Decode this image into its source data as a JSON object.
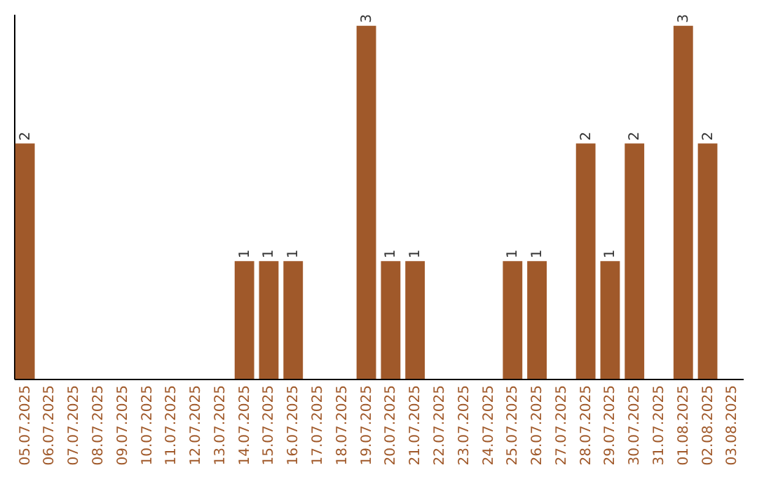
{
  "chart_data": {
    "type": "bar",
    "categories": [
      "05.07.2025",
      "06.07.2025",
      "07.07.2025",
      "08.07.2025",
      "09.07.2025",
      "10.07.2025",
      "11.07.2025",
      "12.07.2025",
      "13.07.2025",
      "14.07.2025",
      "15.07.2025",
      "16.07.2025",
      "17.07.2025",
      "18.07.2025",
      "19.07.2025",
      "20.07.2025",
      "21.07.2025",
      "22.07.2025",
      "23.07.2025",
      "24.07.2025",
      "25.07.2025",
      "26.07.2025",
      "27.07.2025",
      "28.07.2025",
      "29.07.2025",
      "30.07.2025",
      "31.07.2025",
      "01.08.2025",
      "02.08.2025",
      "03.08.2025"
    ],
    "values": [
      2,
      0,
      0,
      0,
      0,
      0,
      0,
      0,
      0,
      1,
      1,
      1,
      0,
      0,
      3,
      1,
      1,
      0,
      0,
      0,
      1,
      1,
      0,
      2,
      1,
      2,
      0,
      3,
      2,
      0
    ],
    "value_labels": [
      "2",
      null,
      null,
      null,
      null,
      null,
      null,
      null,
      null,
      "1",
      "1",
      "1",
      null,
      null,
      "3",
      "1",
      "1",
      null,
      null,
      null,
      "1",
      "1",
      null,
      "2",
      "1",
      "2",
      null,
      "3",
      "2",
      null
    ],
    "color": "#a0592a",
    "ylim": [
      0,
      3.1
    ],
    "tick_labels": "x"
  }
}
